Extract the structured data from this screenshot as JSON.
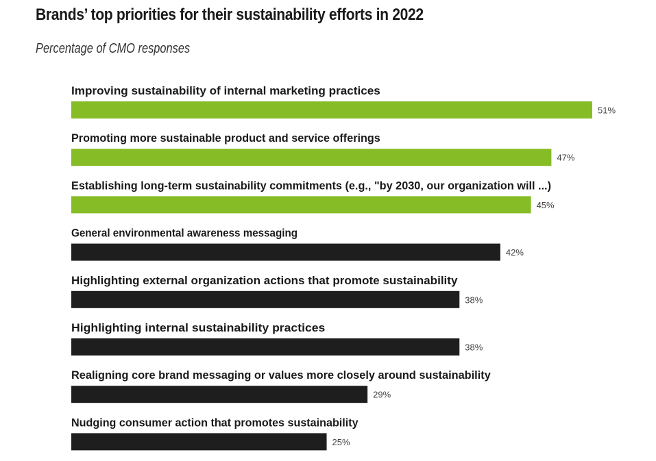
{
  "chart_data": {
    "type": "bar",
    "orientation": "horizontal",
    "title": "Brands’ top priorities for their sustainability efforts in 2022",
    "subtitle": "Percentage of CMO responses",
    "categories": [
      "Improving sustainability of internal marketing practices",
      "Promoting more sustainable product and service offerings",
      "Establishing long-term sustainability commitments (e.g., \"by 2030, our organization will ...)",
      "General environmental awareness messaging",
      "Highlighting external organization actions that promote sustainability",
      "Highlighting internal sustainability practices",
      "Realigning core brand messaging or values more closely around sustainability",
      "Nudging consumer action that promotes sustainability"
    ],
    "values": [
      51,
      47,
      45,
      42,
      38,
      38,
      29,
      25
    ],
    "value_labels": [
      "51%",
      "47%",
      "45%",
      "42%",
      "38%",
      "38%",
      "29%",
      "25%"
    ],
    "unit": "%",
    "xlim": [
      0,
      51
    ],
    "highlight_count": 3,
    "colors": {
      "highlight": "#86bc25",
      "default": "#1e1e1e"
    },
    "grid": false,
    "legend": "none"
  }
}
